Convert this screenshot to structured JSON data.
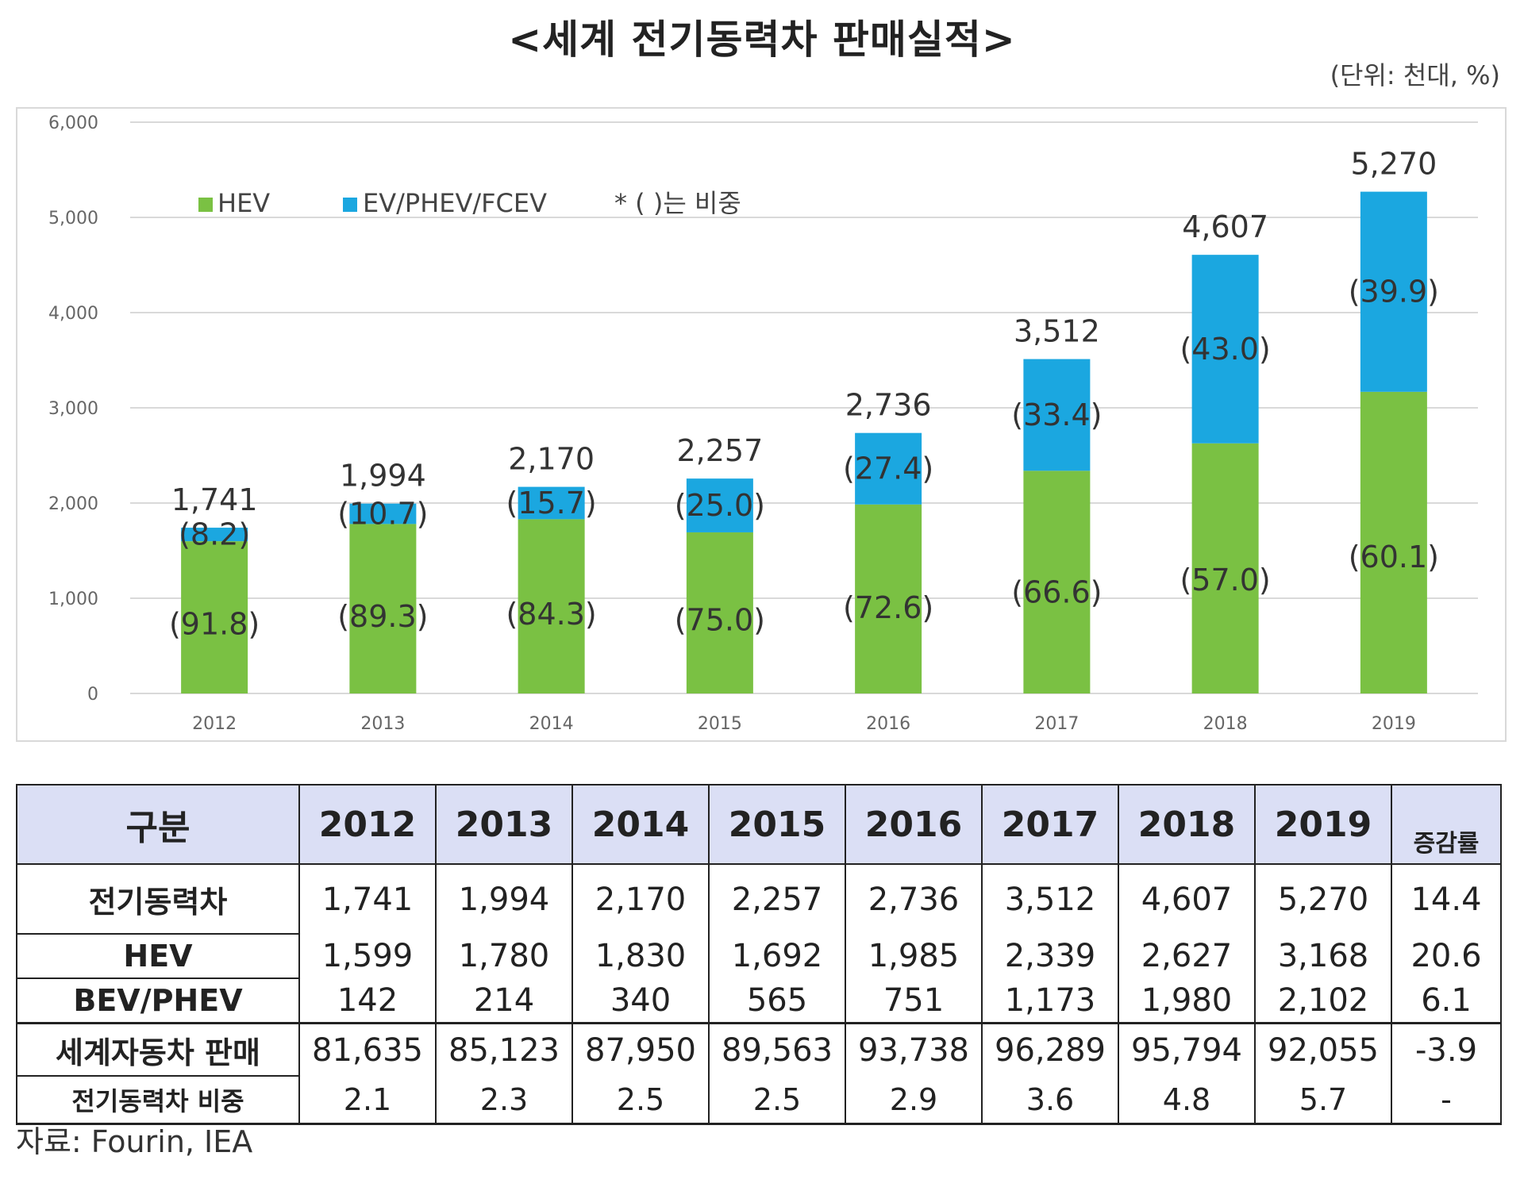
{
  "title": "<세계 전기동력차 판매실적>",
  "unit_note": "(단위: 천대, %)",
  "source": "자료: Fourin, IEA",
  "colors": {
    "hev": "#7ac143",
    "ev": "#1ba7e0",
    "grid": "#d9d9d9",
    "header_bg": "#dbdff5"
  },
  "chart_data": {
    "type": "bar",
    "stacked": true,
    "categories": [
      "2012",
      "2013",
      "2014",
      "2015",
      "2016",
      "2017",
      "2018",
      "2019"
    ],
    "series": [
      {
        "name": "HEV",
        "values": [
          1599,
          1780,
          1830,
          1692,
          1985,
          2339,
          2627,
          3168
        ],
        "share_labels": [
          "(91.8)",
          "(89.3)",
          "(84.3)",
          "(75.0)",
          "(72.6)",
          "(66.6)",
          "(57.0)",
          "(60.1)"
        ]
      },
      {
        "name": "EV/PHEV/FCEV",
        "values": [
          142,
          214,
          340,
          565,
          751,
          1173,
          1980,
          2102
        ],
        "share_labels": [
          "(8.2)",
          "(10.7)",
          "(15.7)",
          "(25.0)",
          "(27.4)",
          "(33.4)",
          "(43.0)",
          "(39.9)"
        ]
      }
    ],
    "totals": [
      "1,741",
      "1,994",
      "2,170",
      "2,257",
      "2,736",
      "3,512",
      "4,607",
      "5,270"
    ],
    "total_values": [
      1741,
      1994,
      2170,
      2257,
      2736,
      3512,
      4607,
      5270
    ],
    "yticks": [
      "0",
      "1,000",
      "2,000",
      "3,000",
      "4,000",
      "5,000",
      "6,000"
    ],
    "ylim": [
      0,
      6000
    ],
    "legend_note": "* ( )는 비중",
    "legend_position": "top-left",
    "grid": true
  },
  "table": {
    "header_label": "구분",
    "years": [
      "2012",
      "2013",
      "2014",
      "2015",
      "2016",
      "2017",
      "2018",
      "2019"
    ],
    "growth_header": "증감률",
    "rows": [
      {
        "label": "전기동력차",
        "values": [
          "1,741",
          "1,994",
          "2,170",
          "2,257",
          "2,736",
          "3,512",
          "4,607",
          "5,270"
        ],
        "growth": "14.4"
      },
      {
        "label": "HEV",
        "values": [
          "1,599",
          "1,780",
          "1,830",
          "1,692",
          "1,985",
          "2,339",
          "2,627",
          "3,168"
        ],
        "growth": "20.6"
      },
      {
        "label": "BEV/PHEV",
        "values": [
          "142",
          "214",
          "340",
          "565",
          "751",
          "1,173",
          "1,980",
          "2,102"
        ],
        "growth": "6.1"
      },
      {
        "label": "세계자동차 판매",
        "values": [
          "81,635",
          "85,123",
          "87,950",
          "89,563",
          "93,738",
          "96,289",
          "95,794",
          "92,055"
        ],
        "growth": "-3.9"
      },
      {
        "label": "전기동력차 비중",
        "values": [
          "2.1",
          "2.3",
          "2.5",
          "2.5",
          "2.9",
          "3.6",
          "4.8",
          "5.7"
        ],
        "growth": "-"
      }
    ]
  }
}
